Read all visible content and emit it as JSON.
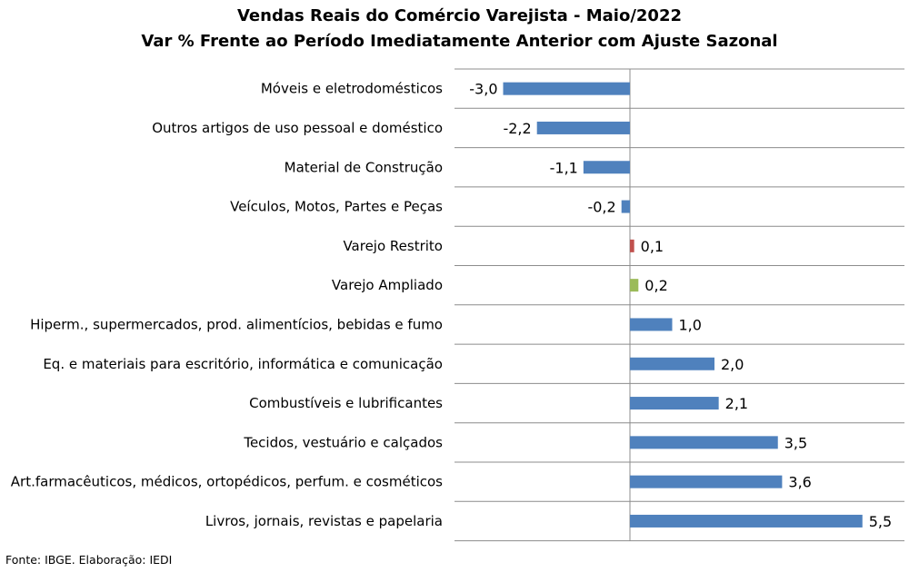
{
  "title": "Vendas Reais do Comércio Varejista - Maio/2022",
  "subtitle": "Var % Frente ao Período Imediatamente Anterior com Ajuste Sazonal",
  "source": "Fonte: IBGE. Elaboração: IEDI",
  "chart_data": {
    "type": "bar",
    "orientation": "horizontal",
    "title": "Vendas Reais do Comércio Varejista - Maio/2022",
    "subtitle": "Var % Frente ao Período Imediatamente Anterior com Ajuste Sazonal",
    "xlim": [
      -3.0,
      5.5
    ],
    "grid": "horizontal lines between categories",
    "data_labels": true,
    "categories": [
      "Móveis e eletrodomésticos",
      "Outros artigos de uso pessoal e doméstico",
      "Material de Construção",
      "Veículos, Motos, Partes e Peças",
      "Varejo Restrito",
      "Varejo Ampliado",
      "Hiperm., supermercados, prod. alimentícios, bebidas e fumo",
      "Eq. e materiais para escritório, informática e comunicação",
      "Combustíveis e lubrificantes",
      "Tecidos, vestuário e calçados",
      "Art.farmacêuticos, médicos, ortopédicos, perfum. e cosméticos",
      "Livros, jornais, revistas e papelaria"
    ],
    "values": [
      -3.0,
      -2.2,
      -1.1,
      -0.2,
      0.1,
      0.2,
      1.0,
      2.0,
      2.1,
      3.5,
      3.6,
      5.5
    ],
    "value_labels": [
      "-3,0",
      "-2,2",
      "-1,1",
      "-0,2",
      "0,1",
      "0,2",
      "1,0",
      "2,0",
      "2,1",
      "3,5",
      "3,6",
      "5,5"
    ],
    "colors": [
      "#4F81BD",
      "#4F81BD",
      "#4F81BD",
      "#4F81BD",
      "#C0504D",
      "#9BBB59",
      "#4F81BD",
      "#4F81BD",
      "#4F81BD",
      "#4F81BD",
      "#4F81BD",
      "#4F81BD"
    ]
  }
}
